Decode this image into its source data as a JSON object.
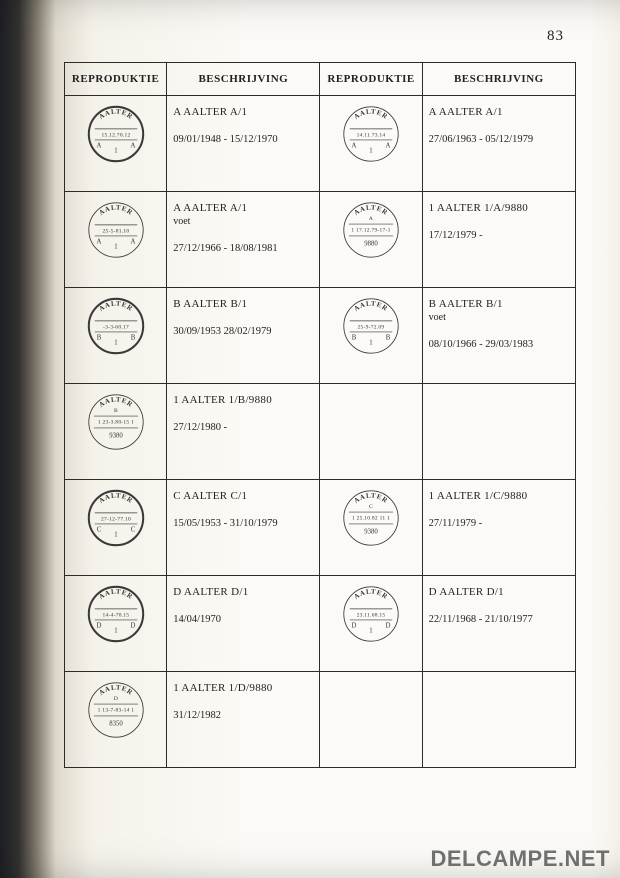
{
  "page_number": "83",
  "headers": {
    "reproduktie": "REPRODUKTIE",
    "beschrijving": "BESCHRIJVING"
  },
  "rows": [
    {
      "left": {
        "stamp": {
          "top": "AALTER",
          "mid": "15.12.70.12",
          "cornerL": "A",
          "cornerR": "A",
          "bottom": "1",
          "bold": true
        },
        "title": "A AALTER A/1",
        "sub": "",
        "dates": "09/01/1948 - 15/12/1970"
      },
      "right": {
        "stamp": {
          "top": "AALTER",
          "mid": "14.11.73.14",
          "cornerL": "A",
          "cornerR": "A",
          "bottom": "1",
          "bold": false
        },
        "title": "A AALTER A/1",
        "sub": "",
        "dates": "27/06/1963 - 05/12/1979"
      }
    },
    {
      "left": {
        "stamp": {
          "top": "AALTER",
          "mid": "25-5-81.10",
          "cornerL": "A",
          "cornerR": "A",
          "bottom": "1",
          "bold": false
        },
        "title": "A AALTER A/1",
        "sub": "voet",
        "dates": "27/12/1966 - 18/08/1981"
      },
      "right": {
        "stamp": {
          "top": "AALTER",
          "subtop": "A",
          "mid": "1 17.12.79-17-1",
          "bottom": "9880",
          "bold": false,
          "centerLayout": true
        },
        "title": "1 AALTER 1/A/9880",
        "sub": "",
        "dates": "17/12/1979 -"
      }
    },
    {
      "left": {
        "stamp": {
          "top": "AALTER",
          "mid": "-3-3-60.17",
          "cornerL": "B",
          "cornerR": "B",
          "bottom": "1",
          "bold": true
        },
        "title": "B AALTER B/1",
        "sub": "",
        "dates": "30/09/1953   28/02/1979"
      },
      "right": {
        "stamp": {
          "top": "AALTER",
          "mid": "25-9-72.09",
          "cornerL": "B",
          "cornerR": "B",
          "bottom": "1",
          "bold": false
        },
        "title": "B AALTER B/1",
        "sub": "voet",
        "dates": "08/10/1966 - 29/03/1983"
      }
    },
    {
      "left": {
        "stamp": {
          "top": "AALTER",
          "subtop": "B",
          "mid": "1 23-3.80-15 1",
          "bottom": "9380",
          "bold": false,
          "centerLayout": true
        },
        "title": "1 AALTER 1/B/9880",
        "sub": "",
        "dates": "27/12/1980 -"
      },
      "right": null
    },
    {
      "left": {
        "stamp": {
          "top": "AALTER",
          "mid": "27-12-77.10",
          "cornerL": "C",
          "cornerR": "C",
          "bottom": "1",
          "bold": true
        },
        "title": "C AALTER C/1",
        "sub": "",
        "dates": "15/05/1953 - 31/10/1979"
      },
      "right": {
        "stamp": {
          "top": "AALTER",
          "subtop": "C",
          "mid": "1 25.10.82 11 1",
          "bottom": "9380",
          "bold": false,
          "centerLayout": true
        },
        "title": "1 AALTER 1/C/9880",
        "sub": "",
        "dates": "27/11/1979 -"
      }
    },
    {
      "left": {
        "stamp": {
          "top": "AALTER",
          "mid": "14-4-70.15",
          "cornerL": "D",
          "cornerR": "D",
          "bottom": "1",
          "bold": true
        },
        "title": "D AALTER D/1",
        "sub": "",
        "dates": "14/04/1970"
      },
      "right": {
        "stamp": {
          "top": "AALTER",
          "mid": "23.11.68.15",
          "cornerL": "D",
          "cornerR": "D",
          "bottom": "1",
          "bold": false
        },
        "title": "D AALTER D/1",
        "sub": "",
        "dates": "22/11/1968 - 21/10/1977"
      }
    },
    {
      "left": {
        "stamp": {
          "top": "AALTER",
          "subtop": "D",
          "mid": "1 13-7-83-14 1",
          "bottom": "8350",
          "bold": false,
          "centerLayout": true
        },
        "title": "1 AALTER 1/D/9880",
        "sub": "",
        "dates": "31/12/1982"
      },
      "right": null
    }
  ],
  "watermark": "DELCAMPE.NET",
  "style": {
    "stamp_stroke": "#3a3a3a",
    "stamp_stroke_bold": 2.4,
    "stamp_stroke_thin": 1.0,
    "table_border_color": "#2b2b2b"
  }
}
